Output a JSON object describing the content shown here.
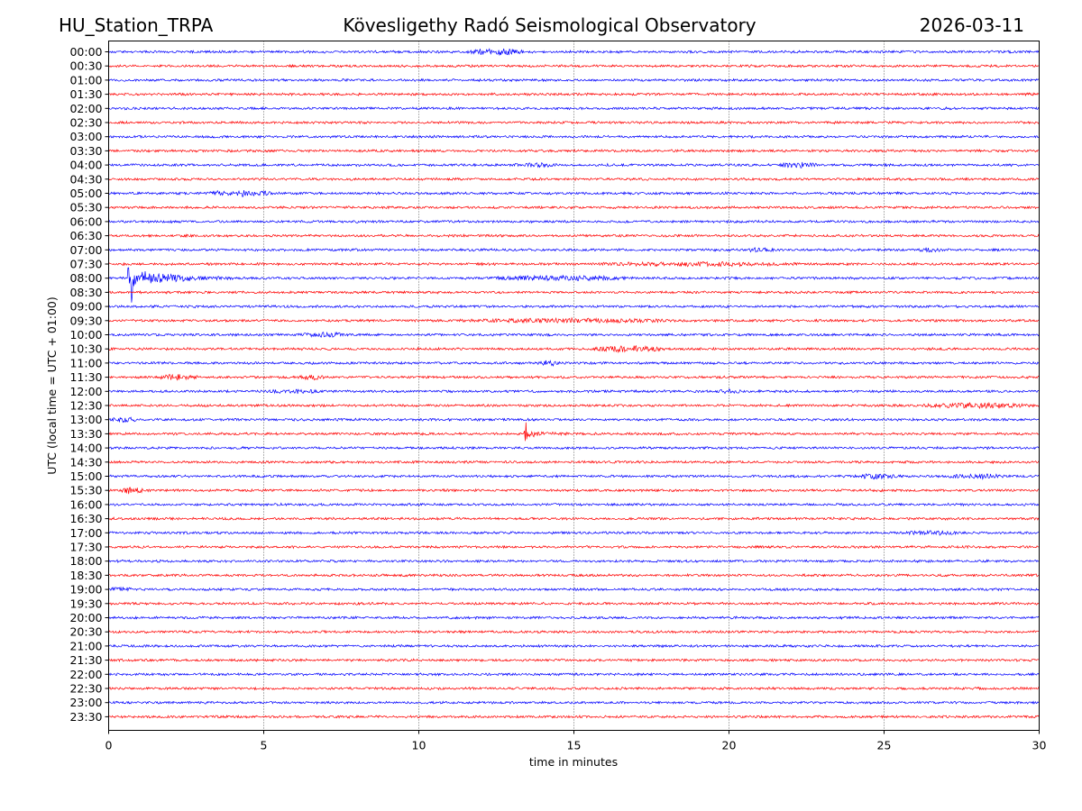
{
  "header": {
    "station": "HU_Station_TRPA",
    "title": "Kövesligethy Radó Seismological Observatory",
    "date": "2026-03-11"
  },
  "colors": {
    "even_rows": "#0000ff",
    "odd_rows": "#ff0000",
    "grid": "#000000"
  },
  "chart_data": {
    "type": "line",
    "title": "Kövesligethy Radó Seismological Observatory",
    "xlabel": "time in minutes",
    "ylabel": "UTC (local time = UTC + 01:00)",
    "xlim": [
      0,
      30
    ],
    "x_ticks": [
      0,
      5,
      10,
      15,
      20,
      25,
      30
    ],
    "x_tick_labels": [
      "0",
      "5",
      "10",
      "15",
      "20",
      "25",
      "30"
    ],
    "grid": "vertical dotted at each x tick",
    "row_labels": [
      "00:00",
      "00:30",
      "01:00",
      "01:30",
      "02:00",
      "02:30",
      "03:00",
      "03:30",
      "04:00",
      "04:30",
      "05:00",
      "05:30",
      "06:00",
      "06:30",
      "07:00",
      "07:30",
      "08:00",
      "08:30",
      "09:00",
      "09:30",
      "10:00",
      "10:30",
      "11:00",
      "11:30",
      "12:00",
      "12:30",
      "13:00",
      "13:30",
      "14:00",
      "14:30",
      "15:00",
      "15:30",
      "16:00",
      "16:30",
      "17:00",
      "17:30",
      "18:00",
      "18:30",
      "19:00",
      "19:30",
      "20:00",
      "20:30",
      "21:00",
      "21:30",
      "22:00",
      "22:30",
      "23:00",
      "23:30"
    ],
    "events": [
      {
        "row": "00:00",
        "start_min": 11.5,
        "end_min": 13.5,
        "amplitude": 3.0
      },
      {
        "row": "04:00",
        "start_min": 13.0,
        "end_min": 14.5,
        "amplitude": 1.5
      },
      {
        "row": "04:00",
        "start_min": 21.5,
        "end_min": 23.0,
        "amplitude": 2.0
      },
      {
        "row": "05:00",
        "start_min": 3.0,
        "end_min": 5.5,
        "amplitude": 2.5
      },
      {
        "row": "07:00",
        "start_min": 20.5,
        "end_min": 21.5,
        "amplitude": 1.5
      },
      {
        "row": "07:00",
        "start_min": 26.0,
        "end_min": 27.0,
        "amplitude": 1.5
      },
      {
        "row": "07:30",
        "start_min": 15.5,
        "end_min": 22.5,
        "amplitude": 1.5
      },
      {
        "row": "08:00",
        "start_min": 0.6,
        "end_min": 4.0,
        "amplitude": 12.0,
        "spike_min": 0.75,
        "spike": 28
      },
      {
        "row": "08:00",
        "start_min": 12.0,
        "end_min": 17.0,
        "amplitude": 2.0
      },
      {
        "row": "09:30",
        "start_min": 11.0,
        "end_min": 19.0,
        "amplitude": 1.5
      },
      {
        "row": "10:00",
        "start_min": 6.0,
        "end_min": 8.0,
        "amplitude": 1.5
      },
      {
        "row": "10:30",
        "start_min": 15.5,
        "end_min": 18.0,
        "amplitude": 2.5
      },
      {
        "row": "11:00",
        "start_min": 13.8,
        "end_min": 14.6,
        "amplitude": 2.0
      },
      {
        "row": "11:30",
        "start_min": 1.5,
        "end_min": 3.0,
        "amplitude": 2.5
      },
      {
        "row": "11:30",
        "start_min": 6.0,
        "end_min": 7.0,
        "amplitude": 2.0
      },
      {
        "row": "12:00",
        "start_min": 5.0,
        "end_min": 7.0,
        "amplitude": 1.5
      },
      {
        "row": "12:00",
        "start_min": 19.5,
        "end_min": 20.5,
        "amplitude": 1.5
      },
      {
        "row": "12:30",
        "start_min": 26.0,
        "end_min": 30.0,
        "amplitude": 2.0
      },
      {
        "row": "13:00",
        "start_min": 0.0,
        "end_min": 1.0,
        "amplitude": 2.0
      },
      {
        "row": "13:30",
        "start_min": 13.4,
        "end_min": 15.0,
        "amplitude": 4.0,
        "spike_min": 13.45,
        "spike": 20
      },
      {
        "row": "15:00",
        "start_min": 24.0,
        "end_min": 25.5,
        "amplitude": 2.0
      },
      {
        "row": "15:00",
        "start_min": 27.0,
        "end_min": 29.0,
        "amplitude": 2.0
      },
      {
        "row": "15:30",
        "start_min": 0.3,
        "end_min": 1.2,
        "amplitude": 3.0
      },
      {
        "row": "17:00",
        "start_min": 25.5,
        "end_min": 27.5,
        "amplitude": 1.5
      },
      {
        "row": "19:00",
        "start_min": 0.0,
        "end_min": 0.8,
        "amplitude": 1.5
      }
    ]
  }
}
